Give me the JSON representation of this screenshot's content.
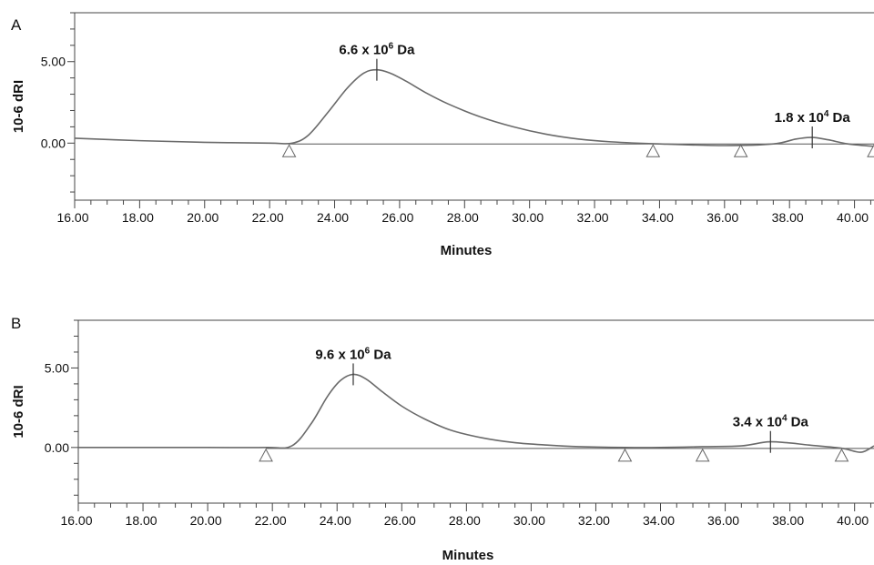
{
  "chart_data": [
    {
      "type": "line",
      "panel_label": "A",
      "xlabel": "Minutes",
      "ylabel": "10-6 dRI",
      "xlim": [
        16,
        40.6
      ],
      "ylim": [
        -3.5,
        8
      ],
      "xticks": [
        "16.00",
        "18.00",
        "20.00",
        "22.00",
        "24.00",
        "26.00",
        "28.00",
        "30.00",
        "32.00",
        "34.00",
        "36.00",
        "38.00",
        "40.00"
      ],
      "yticks": [
        "5.00",
        "0.00"
      ],
      "series": [
        {
          "x": [
            16,
            18,
            20,
            22,
            22.7,
            23.2,
            23.8,
            24.4,
            24.9,
            25.3,
            25.7,
            26.2,
            26.8,
            27.5,
            28.5,
            29.5,
            30.5,
            31.5,
            32.5,
            34,
            36,
            37.5,
            38.2,
            38.7,
            39.2,
            39.8,
            40.6
          ],
          "y": [
            0.3,
            0.15,
            0.05,
            0.0,
            0.0,
            0.5,
            1.9,
            3.4,
            4.3,
            4.5,
            4.3,
            3.8,
            3.1,
            2.4,
            1.6,
            1.0,
            0.55,
            0.25,
            0.08,
            -0.05,
            -0.15,
            -0.05,
            0.25,
            0.35,
            0.2,
            -0.05,
            -0.2
          ]
        }
      ],
      "baseline": {
        "x_start": 22.6,
        "x_end": 41
      },
      "integration_markers": [
        22.6,
        33.8,
        36.5,
        40.6
      ],
      "annotations": [
        {
          "text_main": "6.6 x 10",
          "text_sup": "6",
          "text_unit": " Da",
          "x": 25.3,
          "y": 4.5
        },
        {
          "text_main": "1.8 x 10",
          "text_sup": "4",
          "text_unit": " Da",
          "x": 38.7,
          "y": 0.35
        }
      ]
    },
    {
      "type": "line",
      "panel_label": "B",
      "xlabel": "Minutes",
      "ylabel": "10-6 dRI",
      "xlim": [
        16,
        40.6
      ],
      "ylim": [
        -3.5,
        8
      ],
      "xticks": [
        "16.00",
        "18.00",
        "20.00",
        "22.00",
        "24.00",
        "26.00",
        "28.00",
        "30.00",
        "32.00",
        "34.00",
        "36.00",
        "38.00",
        "40.00"
      ],
      "yticks": [
        "5.00",
        "0.00"
      ],
      "series": [
        {
          "x": [
            16,
            18,
            20,
            21.8,
            22.6,
            23.2,
            23.7,
            24.1,
            24.5,
            24.9,
            25.4,
            26,
            26.7,
            27.5,
            28.5,
            29.5,
            30.5,
            31.5,
            32.9,
            34,
            35.3,
            36.5,
            37.3,
            37.9,
            38.6,
            39.6,
            40.2,
            40.6
          ],
          "y": [
            0.0,
            0.0,
            0.0,
            0.0,
            0.1,
            1.5,
            3.2,
            4.2,
            4.6,
            4.3,
            3.5,
            2.6,
            1.8,
            1.1,
            0.6,
            0.3,
            0.15,
            0.05,
            0.0,
            0.0,
            0.05,
            0.1,
            0.35,
            0.3,
            0.15,
            -0.05,
            -0.3,
            0.1
          ]
        }
      ],
      "baseline": {
        "x_start": 21.8,
        "x_end": 41
      },
      "integration_markers": [
        21.8,
        32.9,
        35.3,
        39.6
      ],
      "annotations": [
        {
          "text_main": "9.6 x 10",
          "text_sup": "6",
          "text_unit": " Da",
          "x": 24.5,
          "y": 4.6
        },
        {
          "text_main": "3.4 x 10",
          "text_sup": "4",
          "text_unit": " Da",
          "x": 37.4,
          "y": 0.35
        }
      ]
    }
  ]
}
